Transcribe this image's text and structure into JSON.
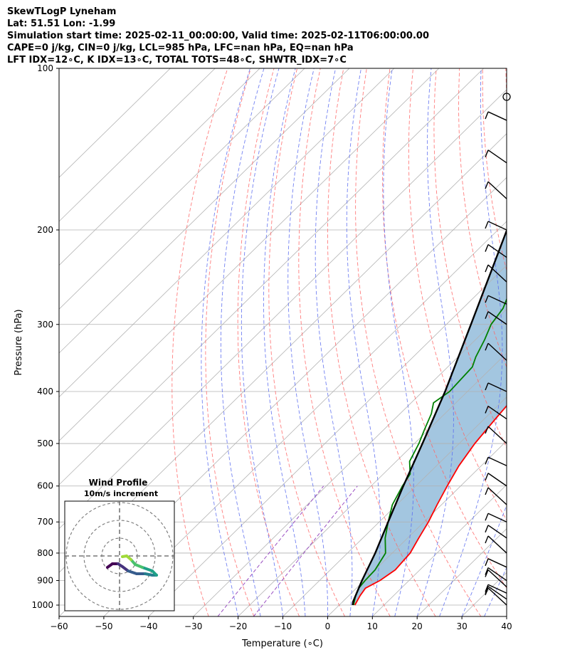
{
  "header": {
    "title": "SkewTLogP Lyneham",
    "location": "Lat: 51.51   Lon: -1.99",
    "times": "Simulation start time: 2025-02-11_00:00:00, Valid time: 2025-02-11T06:00:00.00",
    "indices1": "CAPE=0 j/kg, CIN=0 j/kg, LCL=985 hPa, LFC=nan hPa, EQ=nan hPa",
    "indices2": "LFT IDX=12∘C, K IDX=13∘C, TOTAL TOTS=48∘C, SHWTR_IDX=7∘C"
  },
  "chart_data": {
    "type": "line",
    "subtype": "skew-t log-p",
    "xlabel": "Temperature (∘C)",
    "ylabel": "Pressure (hPa)",
    "xlim": [
      -60,
      40
    ],
    "ylim": [
      1050,
      100
    ],
    "yscale": "log",
    "x_ticks": [
      -60,
      -50,
      -40,
      -30,
      -20,
      -10,
      0,
      10,
      20,
      30,
      40
    ],
    "x_tick_labels": [
      "−60",
      "−50",
      "−40",
      "−30",
      "−20",
      "−10",
      "0",
      "10",
      "20",
      "30",
      "40"
    ],
    "y_ticks": [
      1000,
      900,
      800,
      700,
      600,
      500,
      400,
      300,
      200,
      100
    ],
    "y_tick_labels": [
      "1000",
      "900",
      "800",
      "700",
      "600",
      "500",
      "400",
      "300",
      "200",
      "100"
    ],
    "grid": true,
    "colors": {
      "temperature": "#ff0000",
      "dewpoint": "#008000",
      "parcel": "#000000",
      "fill": "#a3c6e0",
      "dry_adiabat": "#ff6666",
      "moist_adiabat": "#5a6cf0",
      "mixing_ratio": "#9a4fc2",
      "isotherm": "#b3b3b3"
    },
    "series": [
      {
        "role": "temperature",
        "points": [
          [
            3.5,
            1000
          ],
          [
            2.5,
            960
          ],
          [
            2,
            930
          ],
          [
            3.5,
            900
          ],
          [
            4.5,
            860
          ],
          [
            4,
            800
          ],
          [
            2.5,
            750
          ],
          [
            1,
            700
          ],
          [
            -1,
            650
          ],
          [
            -3,
            600
          ],
          [
            -5,
            550
          ],
          [
            -6.5,
            500
          ],
          [
            -7.5,
            450
          ],
          [
            -8.5,
            400
          ],
          [
            -9.5,
            370
          ],
          [
            -10.5,
            345
          ],
          [
            -12,
            320
          ],
          [
            -13,
            300
          ],
          [
            -13.5,
            285
          ],
          [
            -13,
            270
          ],
          [
            -12.5,
            260
          ],
          [
            -11.5,
            250
          ],
          [
            -12.5,
            220
          ],
          [
            -14,
            200
          ],
          [
            -18,
            180
          ],
          [
            -20,
            170
          ],
          [
            -22,
            160
          ],
          [
            -23,
            150
          ],
          [
            -24,
            140
          ],
          [
            -25,
            130
          ],
          [
            -25.5,
            120
          ],
          [
            -26,
            110
          ],
          [
            -26,
            100
          ]
        ]
      },
      {
        "role": "dewpoint",
        "points": [
          [
            3.2,
            1000
          ],
          [
            1.5,
            960
          ],
          [
            0.5,
            930
          ],
          [
            0.2,
            900
          ],
          [
            0,
            860
          ],
          [
            -1.5,
            800
          ],
          [
            -5,
            750
          ],
          [
            -8,
            700
          ],
          [
            -11,
            650
          ],
          [
            -13,
            600
          ],
          [
            -14,
            570
          ],
          [
            -17,
            540
          ],
          [
            -19,
            500
          ],
          [
            -21,
            470
          ],
          [
            -23,
            440
          ],
          [
            -25,
            420
          ],
          [
            -24,
            400
          ],
          [
            -24.5,
            360
          ],
          [
            -26,
            345
          ],
          [
            -28,
            320
          ],
          [
            -30,
            300
          ],
          [
            -31,
            280
          ],
          [
            -34,
            255
          ],
          [
            -37,
            235
          ],
          [
            -39,
            215
          ],
          [
            -41,
            200
          ],
          [
            -42,
            185
          ],
          [
            -44.5,
            170
          ],
          [
            -49,
            160
          ],
          [
            -54,
            145
          ],
          [
            -58,
            130
          ],
          [
            -62,
            115
          ],
          [
            -65,
            100
          ]
        ]
      },
      {
        "role": "parcel",
        "points": [
          [
            3,
            1000
          ],
          [
            2.3,
            985
          ],
          [
            -0.5,
            900
          ],
          [
            -3.8,
            800
          ],
          [
            -8,
            700
          ],
          [
            -12.8,
            600
          ],
          [
            -18.2,
            500
          ],
          [
            -25,
            400
          ],
          [
            -34.5,
            300
          ],
          [
            -48,
            200
          ],
          [
            -73,
            100
          ]
        ]
      }
    ],
    "hodograph": {
      "title": "Wind Profile",
      "subtitle": "10m/s increment",
      "rings": [
        10,
        20,
        30
      ]
    },
    "wind_barbs": {
      "pressure_levels": [
        1000,
        975,
        950,
        925,
        900,
        850,
        800,
        750,
        700,
        650,
        600,
        550,
        500,
        450,
        400,
        350,
        300,
        275,
        250,
        225,
        200,
        175,
        150,
        125,
        100
      ]
    }
  }
}
